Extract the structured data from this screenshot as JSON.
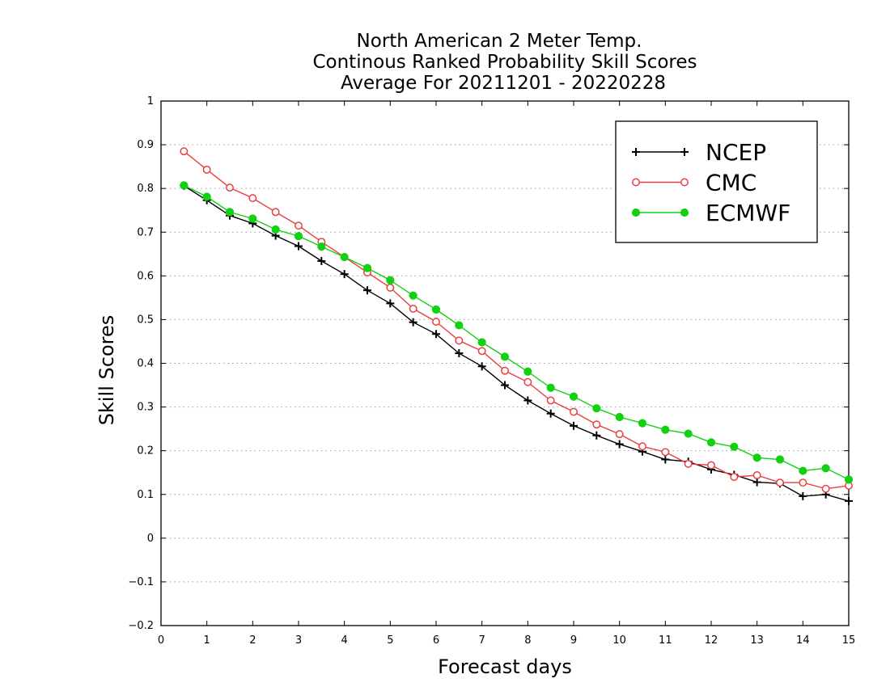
{
  "chart_data": {
    "type": "line",
    "title_lines": [
      "North American 2 Meter Temp.",
      "Continous Ranked Probability Skill Scores",
      "Average For 20211201 - 20220228"
    ],
    "xlabel": "Forecast days",
    "ylabel": "Skill Scores",
    "xlim": [
      0,
      15
    ],
    "ylim": [
      -0.2,
      1
    ],
    "xticks": [
      "0",
      "1",
      "2",
      "3",
      "4",
      "5",
      "6",
      "7",
      "8",
      "9",
      "10",
      "11",
      "12",
      "13",
      "14",
      "15"
    ],
    "yticks": [
      "−0.2",
      "−0.1",
      "0",
      "0.1",
      "0.2",
      "0.3",
      "0.4",
      "0.5",
      "0.6",
      "0.7",
      "0.8",
      "0.9",
      "1"
    ],
    "grid": "horizontal dotted",
    "legend_position": "top-right",
    "x": [
      0.5,
      1,
      1.5,
      2,
      2.5,
      3,
      3.5,
      4,
      4.5,
      5,
      5.5,
      6,
      6.5,
      7,
      7.5,
      8,
      8.5,
      9,
      9.5,
      10,
      10.5,
      11,
      11.5,
      12,
      12.5,
      13,
      13.5,
      14,
      14.5,
      15
    ],
    "series": [
      {
        "name": "NCEP",
        "color": "#000000",
        "marker": "plus",
        "values": [
          0.806,
          0.773,
          0.738,
          0.72,
          0.692,
          0.668,
          0.634,
          0.604,
          0.567,
          0.537,
          0.494,
          0.467,
          0.423,
          0.393,
          0.35,
          0.315,
          0.285,
          0.257,
          0.235,
          0.215,
          0.198,
          0.18,
          0.175,
          0.157,
          0.145,
          0.128,
          0.125,
          0.096,
          0.1,
          0.085
        ]
      },
      {
        "name": "CMC",
        "color": "#e8403f",
        "marker": "open-circle",
        "values": [
          0.885,
          0.843,
          0.802,
          0.778,
          0.746,
          0.715,
          0.678,
          0.643,
          0.608,
          0.573,
          0.525,
          0.495,
          0.452,
          0.428,
          0.383,
          0.357,
          0.315,
          0.289,
          0.26,
          0.238,
          0.21,
          0.197,
          0.17,
          0.167,
          0.14,
          0.144,
          0.127,
          0.127,
          0.113,
          0.12
        ]
      },
      {
        "name": "ECMWF",
        "color": "#12d012",
        "marker": "filled-circle",
        "values": [
          0.807,
          0.781,
          0.746,
          0.731,
          0.706,
          0.691,
          0.667,
          0.643,
          0.618,
          0.59,
          0.555,
          0.523,
          0.487,
          0.448,
          0.415,
          0.381,
          0.344,
          0.324,
          0.297,
          0.277,
          0.263,
          0.248,
          0.239,
          0.219,
          0.209,
          0.184,
          0.18,
          0.154,
          0.16,
          0.134
        ]
      }
    ]
  }
}
